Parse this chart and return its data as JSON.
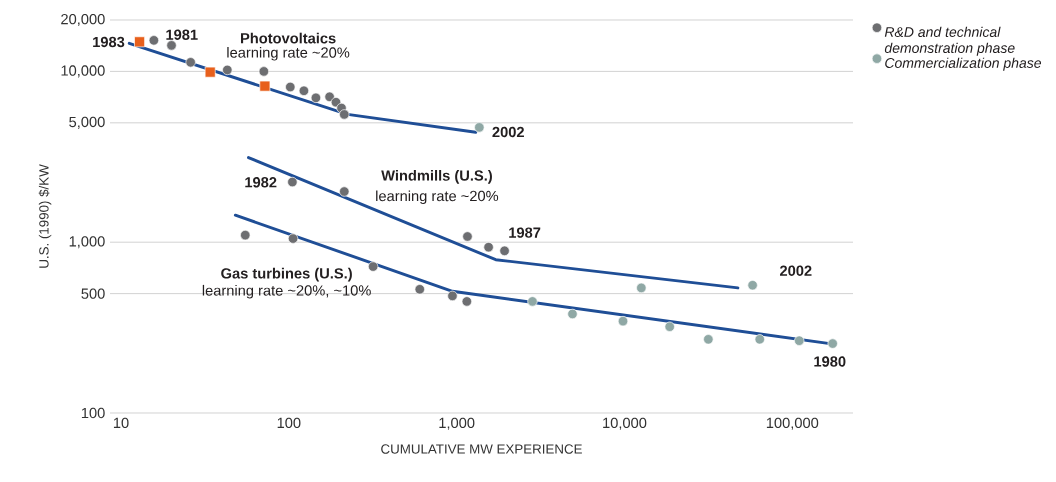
{
  "chart_data": {
    "type": "scatter",
    "xlabel": "CUMULATIVE MW EXPERIENCE",
    "ylabel": "U.S. (1990) $/KW",
    "log": "xy",
    "grid": "y",
    "legend": "top right",
    "marker": "circle",
    "xlim": [
      8.6,
      230000
    ],
    "ylim": [
      100,
      20000
    ],
    "xticks": [
      10,
      100,
      {
        "value": 1000,
        "label": "1,000"
      },
      {
        "value": 10000,
        "label": "10,000"
      },
      {
        "value": 100000,
        "label": "100,000"
      }
    ],
    "yticks": [
      100,
      500,
      {
        "value": 1000,
        "label": "1,000"
      },
      {
        "value": 5000,
        "label": "5,000"
      },
      {
        "value": 10000,
        "label": "10,000"
      },
      {
        "value": 20000,
        "label": "20,000"
      }
    ],
    "series": [
      {
        "type": "line",
        "marker": "none",
        "color": "#1f4e96",
        "x": [
          11.2,
          224,
          1300
        ],
        "values": [
          14600,
          5600,
          4400
        ]
      },
      {
        "type": "line",
        "marker": "none",
        "color": "#1f4e96",
        "x": [
          57.5,
          1710,
          47400
        ],
        "values": [
          3130,
          790,
          540
        ]
      },
      {
        "type": "line",
        "marker": "none",
        "color": "#1f4e96",
        "x": [
          48,
          944,
          176000
        ],
        "values": [
          1440,
          516,
          253
        ]
      },
      {
        "name": "R&D and technical demonstration phase",
        "color": "#6d6e71",
        "x": [
          15.7,
          20,
          26,
          43,
          71,
          102,
          123,
          145,
          175,
          191,
          206,
          214,
          105,
          214,
          1160,
          1550,
          1930,
          55,
          106,
          318,
          603,
          944,
          1150
        ],
        "values": [
          15200,
          14200,
          11300,
          10200,
          10000,
          8100,
          7700,
          7000,
          7100,
          6600,
          6100,
          5600,
          2250,
          1980,
          1080,
          935,
          890,
          1100,
          1050,
          720,
          530,
          485,
          450
        ]
      },
      {
        "name": "Commercialization phase",
        "color": "#8fa8a5",
        "x": [
          1365,
          12600,
          58000,
          2830,
          4900,
          9800,
          18600,
          31600,
          64000,
          110000,
          174000
        ],
        "values": [
          4700,
          540,
          560,
          450,
          380,
          345,
          320,
          270,
          270,
          265,
          255
        ]
      },
      {
        "marker": "square",
        "color": "#e8601c",
        "x": [
          12.9,
          34,
          72
        ],
        "values": [
          14900,
          9900,
          8200
        ]
      }
    ],
    "annotations": [
      "**1983**",
      "**1981**",
      "**Photovoltaics**",
      "learning rate ~20%",
      "**2002**",
      "**1982**",
      "**Windmills (U.S.)**",
      "learning rate ~20%",
      "**1987**",
      "**2002**",
      "**Gas turbines (U.S.)**",
      "learning rate ~20%, ~10%",
      "**1980**"
    ]
  }
}
